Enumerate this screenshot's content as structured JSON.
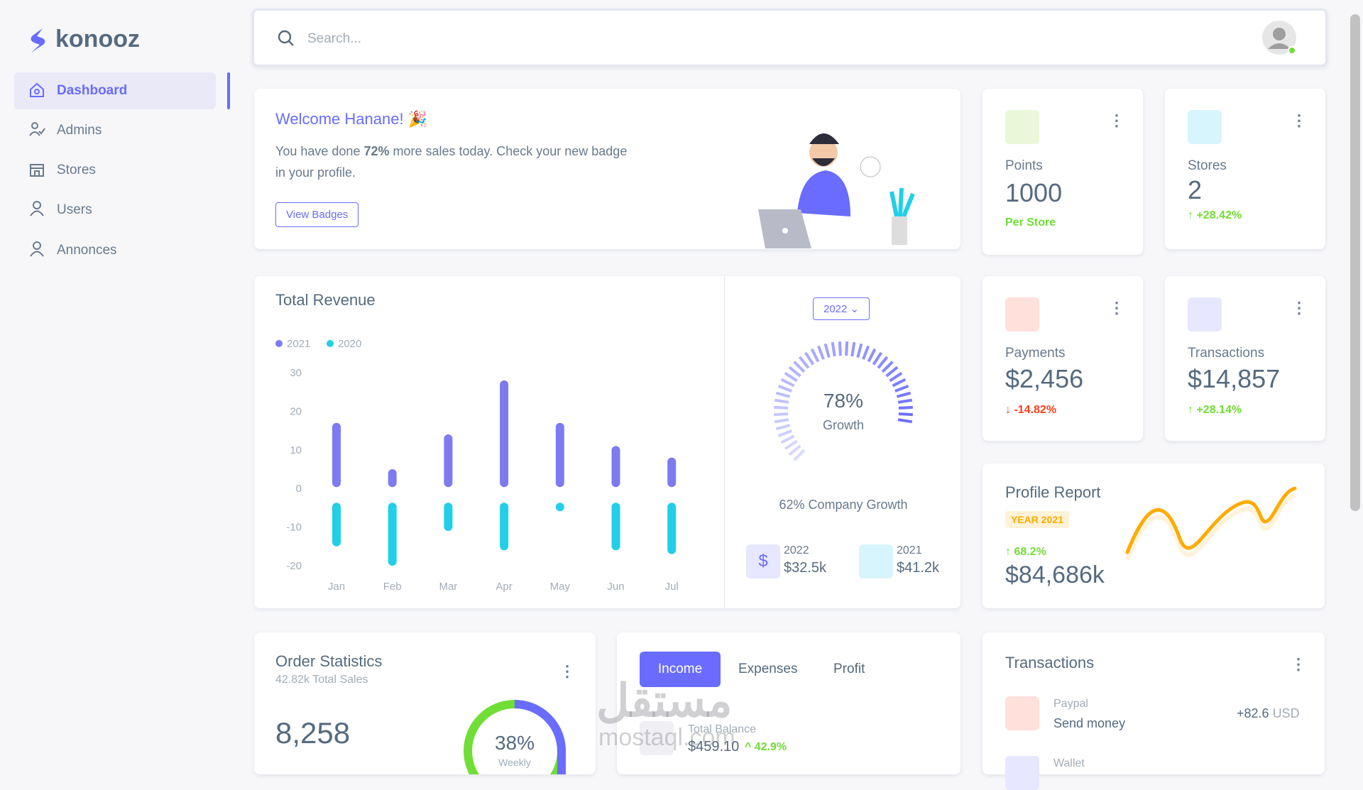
{
  "brand": "konooz",
  "nav": [
    "Dashboard",
    "Admins",
    "Stores",
    "Users",
    "Annonces"
  ],
  "search_placeholder": "Search...",
  "welcome": {
    "title": "Welcome Hanane! 🎉",
    "text_before": "You have done ",
    "highlight": "72%",
    "text_after": " more sales today. Check your new badge in your profile.",
    "button": "View Badges"
  },
  "stats": [
    {
      "label": "Points",
      "value": "1000",
      "note": "Per Store"
    },
    {
      "label": "Stores",
      "value": "2",
      "change": "+28.42%"
    },
    {
      "label": "Payments",
      "value": "$2,456",
      "change": "-14.82%"
    },
    {
      "label": "Transactions",
      "value": "$14,857",
      "change": "+28.14%"
    }
  ],
  "chart_data": {
    "type": "bar",
    "title": "Total Revenue",
    "categories": [
      "Jan",
      "Feb",
      "Mar",
      "Apr",
      "May",
      "Jun",
      "Jul"
    ],
    "series": [
      {
        "name": "2021",
        "color": "#7c7cf0",
        "values": [
          17,
          5,
          14,
          28,
          17,
          11,
          8
        ]
      },
      {
        "name": "2020",
        "color": "#22cfe8",
        "values": [
          -15,
          -20,
          -11,
          -16,
          -4,
          -16,
          -17
        ]
      }
    ],
    "ylim": [
      -20,
      30
    ],
    "yticks": [
      -20,
      -10,
      0,
      10,
      20,
      30
    ]
  },
  "growth": {
    "year": "2022",
    "value": "78%",
    "label": "Growth",
    "caption": "62% Company Growth",
    "items": [
      {
        "year": "2022",
        "amount": "$32.5k"
      },
      {
        "year": "2021",
        "amount": "$41.2k"
      }
    ]
  },
  "profile": {
    "title": "Profile Report",
    "badge": "YEAR 2021",
    "change": "68.2%",
    "value": "$84,686k"
  },
  "orders": {
    "title": "Order Statistics",
    "subtitle": "42.82k Total Sales",
    "value": "8,258",
    "donut": "38%",
    "donut_label": "Weekly"
  },
  "income": {
    "tabs": [
      "Income",
      "Expenses",
      "Profit"
    ],
    "balance_label": "Total Balance",
    "balance": "$459.10",
    "change": "42.9%"
  },
  "transactions": {
    "title": "Transactions",
    "items": [
      {
        "method": "Paypal",
        "desc": "Send money",
        "amount": "+82.6",
        "currency": "USD"
      },
      {
        "method": "Wallet"
      }
    ]
  },
  "watermark": [
    "مستقل",
    "mostaql.com"
  ]
}
